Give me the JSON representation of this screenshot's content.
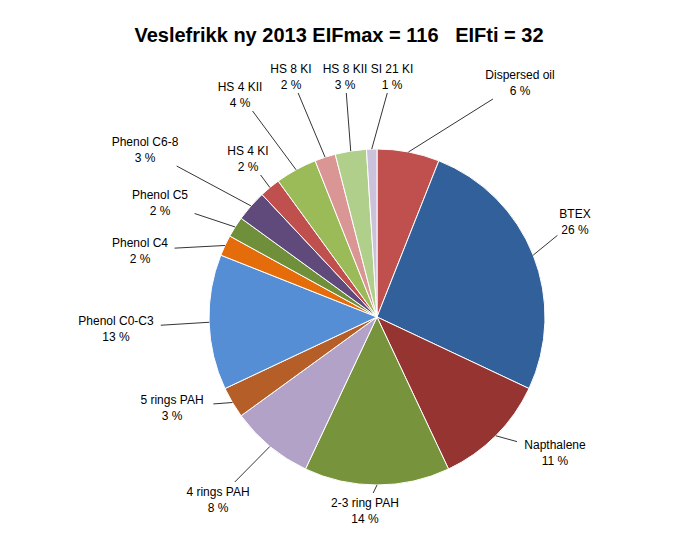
{
  "chart_data": {
    "type": "pie",
    "title": "Veslefrikk ny 2013 EIFmax = 116   EIFti = 32",
    "categories": [
      "Dispersed oil",
      "BTEX",
      "Napthalene",
      "2-3 ring PAH",
      "4 rings PAH",
      "5 rings PAH",
      "Phenol C0-C3",
      "Phenol C4",
      "Phenol C5",
      "Phenol C6-8",
      "HS 4 KI",
      "HS 4 KII",
      "HS 8 KI",
      "HS 8 KII",
      "SI 21 KI"
    ],
    "values": [
      6,
      26,
      11,
      14,
      8,
      3,
      13,
      2,
      2,
      3,
      2,
      4,
      2,
      3,
      1
    ],
    "value_labels": [
      "6 %",
      "26 %",
      "11 %",
      "14 %",
      "8 %",
      "3 %",
      "13 %",
      "2 %",
      "2 %",
      "3 %",
      "2 %",
      "4 %",
      "2 %",
      "3 %",
      "1 %"
    ],
    "colors": [
      "#c0504d",
      "#31609a",
      "#963431",
      "#77933c",
      "#b3a2c7",
      "#b65e27",
      "#558ed5",
      "#e46c0a",
      "#6f8f3a",
      "#604a7b",
      "#c0504d",
      "#9bbb59",
      "#d99694",
      "#b0cf8a",
      "#ccc1da"
    ],
    "data_labels": true
  }
}
